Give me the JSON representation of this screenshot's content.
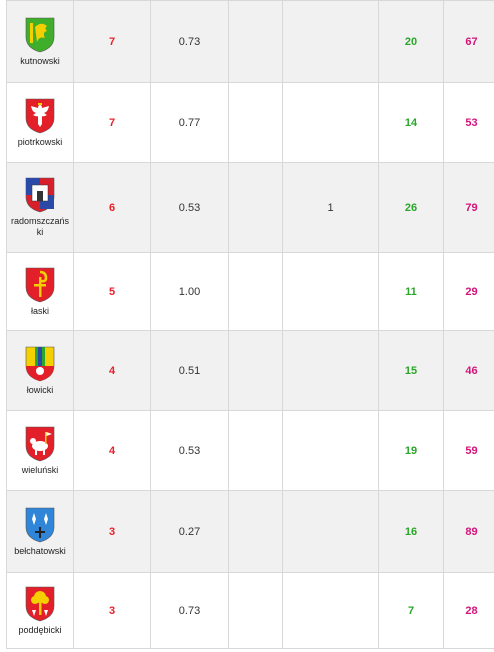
{
  "rows": [
    {
      "name": "kutnowski",
      "c2": "7",
      "c3": "0.73",
      "c4": "",
      "c5": "",
      "c6": "20",
      "c7": "67",
      "crest_colors": [
        "#3fae2a",
        "#f4d000"
      ],
      "crest_icon": "griffin-icon"
    },
    {
      "name": "piotrkowski",
      "c2": "7",
      "c3": "0.77",
      "c4": "",
      "c5": "",
      "c6": "14",
      "c7": "53",
      "crest_colors": [
        "#e3202a",
        "#ffffff"
      ],
      "crest_icon": "eagle-icon"
    },
    {
      "name": "radomszczański",
      "c2": "6",
      "c3": "0.53",
      "c4": "",
      "c5": "1",
      "c6": "26",
      "c7": "79",
      "crest_colors": [
        "#2b4aa8",
        "#d8202a"
      ],
      "crest_icon": "castle-icon"
    },
    {
      "name": "łaski",
      "c2": "5",
      "c3": "1.00",
      "c4": "",
      "c5": "",
      "c6": "11",
      "c7": "29",
      "crest_colors": [
        "#e3202a",
        "#f4d000"
      ],
      "crest_icon": "crosier-icon"
    },
    {
      "name": "łowicki",
      "c2": "4",
      "c3": "0.51",
      "c4": "",
      "c5": "",
      "c6": "15",
      "c7": "46",
      "crest_colors": [
        "#f4d000",
        "#e3202a"
      ],
      "crest_icon": "stripes-icon"
    },
    {
      "name": "wieluński",
      "c2": "4",
      "c3": "0.53",
      "c4": "",
      "c5": "",
      "c6": "19",
      "c7": "59",
      "crest_colors": [
        "#e3202a",
        "#ffffff"
      ],
      "crest_icon": "lamb-icon"
    },
    {
      "name": "bełchatowski",
      "c2": "3",
      "c3": "0.27",
      "c4": "",
      "c5": "",
      "c6": "16",
      "c7": "89",
      "crest_colors": [
        "#2f86d8",
        "#ffffff"
      ],
      "crest_icon": "lily-icon"
    },
    {
      "name": "poddębicki",
      "c2": "3",
      "c3": "0.73",
      "c4": "",
      "c5": "",
      "c6": "7",
      "c7": "28",
      "crest_colors": [
        "#e3202a",
        "#f4d000"
      ],
      "crest_icon": "tree-icon"
    }
  ]
}
